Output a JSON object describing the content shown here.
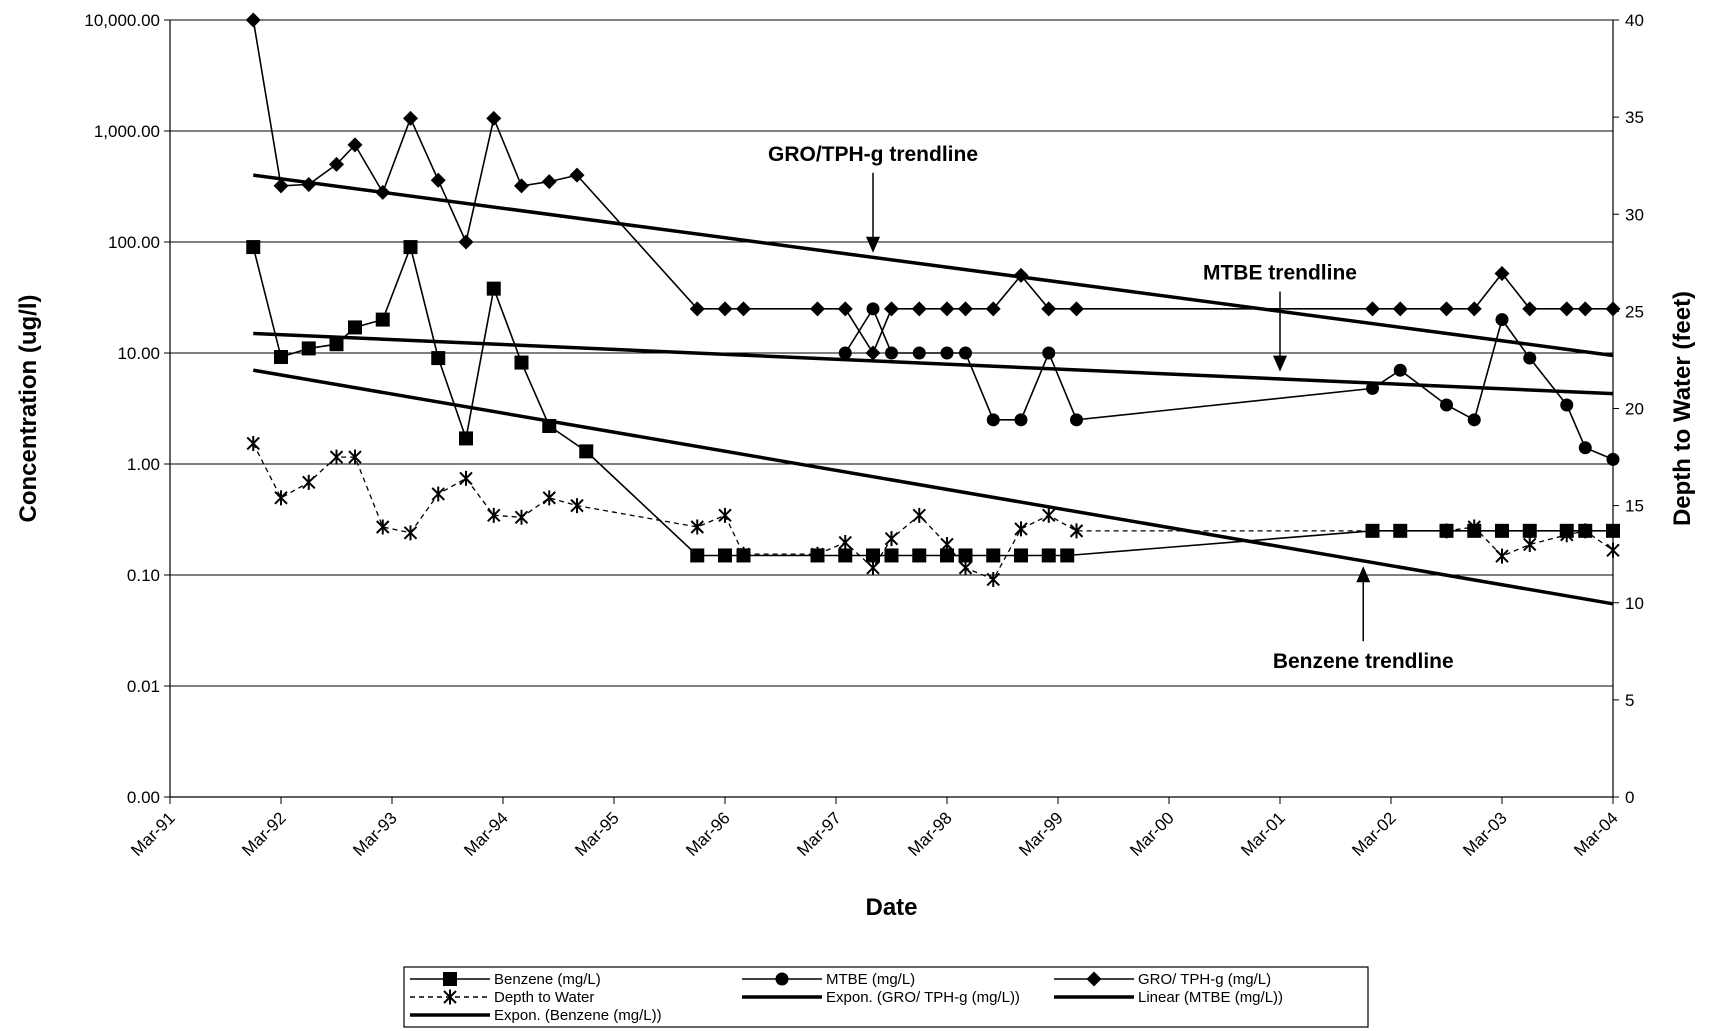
{
  "chart_data": {
    "type": "line",
    "title": "",
    "xlabel": "Date",
    "ylabel": "Concentration (ug/l)",
    "y2label": "Depth to Water (feet)",
    "y_scale": "log",
    "y_tick_labels": [
      "10,000.00",
      "1,000.00",
      "100.00",
      "10.00",
      "1.00",
      "0.10",
      "0.01",
      "0.00"
    ],
    "y_tick_values": [
      10000,
      1000,
      100,
      10,
      1,
      0.1,
      0.01,
      0.001
    ],
    "ylim": [
      0.001,
      10000
    ],
    "y2lim": [
      0,
      40
    ],
    "y2_ticks": [
      0,
      5,
      10,
      15,
      20,
      25,
      30,
      35,
      40
    ],
    "x_ticks": [
      "Mar-91",
      "Mar-92",
      "Mar-93",
      "Mar-94",
      "Mar-95",
      "Mar-96",
      "Mar-97",
      "Mar-98",
      "Mar-99",
      "Mar-00",
      "Mar-01",
      "Mar-02",
      "Mar-03",
      "Mar-04"
    ],
    "xlim": [
      "1991-03",
      "2004-03"
    ],
    "grid": "horizontal major gridlines",
    "legend_position": "bottom",
    "series": [
      {
        "name": "Benzene (mg/L)",
        "marker": "square",
        "axis": "left",
        "line": "solid",
        "points": [
          [
            "1991-12",
            90
          ],
          [
            "1992-03",
            9.2
          ],
          [
            "1992-06",
            11
          ],
          [
            "1992-09",
            12
          ],
          [
            "1992-11",
            17
          ],
          [
            "1993-02",
            20
          ],
          [
            "1993-05",
            90
          ],
          [
            "1993-08",
            9
          ],
          [
            "1993-11",
            1.7
          ],
          [
            "1994-02",
            38
          ],
          [
            "1994-05",
            8.2
          ],
          [
            "1994-08",
            2.2
          ],
          [
            "1994-12",
            1.3
          ],
          [
            "1995-12",
            0.15
          ],
          [
            "1996-03",
            0.15
          ],
          [
            "1996-05",
            0.15
          ],
          [
            "1997-01",
            0.15
          ],
          [
            "1997-04",
            0.15
          ],
          [
            "1997-07",
            0.15
          ],
          [
            "1997-09",
            0.15
          ],
          [
            "1997-12",
            0.15
          ],
          [
            "1998-03",
            0.15
          ],
          [
            "1998-05",
            0.15
          ],
          [
            "1998-08",
            0.15
          ],
          [
            "1998-11",
            0.15
          ],
          [
            "1999-02",
            0.15
          ],
          [
            "1999-04",
            0.15
          ],
          [
            "2002-01",
            0.25
          ],
          [
            "2002-04",
            0.25
          ],
          [
            "2002-09",
            0.25
          ],
          [
            "2002-12",
            0.25
          ],
          [
            "2003-03",
            0.25
          ],
          [
            "2003-06",
            0.25
          ],
          [
            "2003-10",
            0.25
          ],
          [
            "2003-12",
            0.25
          ],
          [
            "2004-03",
            0.25
          ]
        ]
      },
      {
        "name": "MTBE (mg/L)",
        "marker": "circle",
        "axis": "left",
        "line": "solid",
        "points": [
          [
            "1997-04",
            10
          ],
          [
            "1997-07",
            25
          ],
          [
            "1997-09",
            10
          ],
          [
            "1997-12",
            10
          ],
          [
            "1998-03",
            10
          ],
          [
            "1998-05",
            10
          ],
          [
            "1998-08",
            2.5
          ],
          [
            "1998-11",
            2.5
          ],
          [
            "1999-02",
            10
          ],
          [
            "1999-05",
            2.5
          ],
          [
            "2002-01",
            4.8
          ],
          [
            "2002-04",
            7
          ],
          [
            "2002-09",
            3.4
          ],
          [
            "2002-12",
            2.5
          ],
          [
            "2003-03",
            20
          ],
          [
            "2003-06",
            9
          ],
          [
            "2003-10",
            3.4
          ],
          [
            "2003-12",
            1.4
          ],
          [
            "2004-03",
            1.1
          ]
        ]
      },
      {
        "name": "GRO/ TPH-g (mg/L)",
        "marker": "diamond",
        "axis": "left",
        "line": "solid",
        "points": [
          [
            "1991-12",
            10000
          ],
          [
            "1992-03",
            320
          ],
          [
            "1992-06",
            330
          ],
          [
            "1992-09",
            500
          ],
          [
            "1992-11",
            750
          ],
          [
            "1993-02",
            280
          ],
          [
            "1993-05",
            1300
          ],
          [
            "1993-08",
            360
          ],
          [
            "1993-11",
            100
          ],
          [
            "1994-02",
            1300
          ],
          [
            "1994-05",
            320
          ],
          [
            "1994-08",
            350
          ],
          [
            "1994-11",
            400
          ],
          [
            "1995-12",
            25
          ],
          [
            "1996-03",
            25
          ],
          [
            "1996-05",
            25
          ],
          [
            "1997-01",
            25
          ],
          [
            "1997-04",
            25
          ],
          [
            "1997-07",
            10
          ],
          [
            "1997-09",
            25
          ],
          [
            "1997-12",
            25
          ],
          [
            "1998-03",
            25
          ],
          [
            "1998-05",
            25
          ],
          [
            "1998-08",
            25
          ],
          [
            "1998-11",
            50
          ],
          [
            "1999-02",
            25
          ],
          [
            "1999-05",
            25
          ],
          [
            "2002-01",
            25
          ],
          [
            "2002-04",
            25
          ],
          [
            "2002-09",
            25
          ],
          [
            "2002-12",
            25
          ],
          [
            "2003-03",
            52
          ],
          [
            "2003-06",
            25
          ],
          [
            "2003-10",
            25
          ],
          [
            "2003-12",
            25
          ],
          [
            "2004-03",
            25
          ]
        ]
      },
      {
        "name": "Depth to Water",
        "marker": "asterisk",
        "axis": "right",
        "line": "dashed",
        "points": [
          [
            "1991-12",
            18.2
          ],
          [
            "1992-03",
            15.4
          ],
          [
            "1992-06",
            16.2
          ],
          [
            "1992-09",
            17.5
          ],
          [
            "1992-11",
            17.5
          ],
          [
            "1993-02",
            13.9
          ],
          [
            "1993-05",
            13.6
          ],
          [
            "1993-08",
            15.6
          ],
          [
            "1993-11",
            16.4
          ],
          [
            "1994-02",
            14.5
          ],
          [
            "1994-05",
            14.4
          ],
          [
            "1994-08",
            15.4
          ],
          [
            "1994-11",
            15
          ],
          [
            "1995-12",
            13.9
          ],
          [
            "1996-03",
            14.5
          ],
          [
            "1996-05",
            12.5
          ],
          [
            "1997-01",
            12.5
          ],
          [
            "1997-04",
            13.1
          ],
          [
            "1997-07",
            11.8
          ],
          [
            "1997-09",
            13.3
          ],
          [
            "1997-12",
            14.5
          ],
          [
            "1998-03",
            13
          ],
          [
            "1998-05",
            11.8
          ],
          [
            "1998-08",
            11.2
          ],
          [
            "1998-11",
            13.8
          ],
          [
            "1999-02",
            14.5
          ],
          [
            "1999-05",
            13.7
          ],
          [
            "2002-09",
            13.7
          ],
          [
            "2002-12",
            13.9
          ],
          [
            "2003-03",
            12.4
          ],
          [
            "2003-06",
            13
          ],
          [
            "2003-10",
            13.5
          ],
          [
            "2003-12",
            13.7
          ],
          [
            "2004-03",
            12.7
          ]
        ]
      }
    ],
    "trendlines": [
      {
        "name": "Expon. (GRO/ TPH-g (mg/L))",
        "axis": "left",
        "from": [
          "1991-12",
          400
        ],
        "to": [
          "2004-03",
          9.5
        ]
      },
      {
        "name": "Linear (MTBE (mg/L))",
        "axis": "left",
        "from": [
          "1991-12",
          15
        ],
        "to": [
          "2004-03",
          4.3
        ]
      },
      {
        "name": "Expon. (Benzene (mg/L))",
        "axis": "left",
        "from": [
          "1991-12",
          7
        ],
        "to": [
          "2004-03",
          0.055
        ]
      }
    ],
    "annotations": [
      {
        "text": "GRO/TPH-g trendline",
        "target": [
          "1997-07",
          80
        ],
        "direction": "down"
      },
      {
        "text": "MTBE trendline",
        "target": [
          "2001-03",
          6.8
        ],
        "direction": "down"
      },
      {
        "text": "Benzene trendline",
        "target": [
          "2001-12",
          0.12
        ],
        "direction": "up"
      }
    ],
    "legend": [
      [
        "Benzene (mg/L)",
        "MTBE (mg/L)",
        "GRO/ TPH-g (mg/L)"
      ],
      [
        "Depth to Water",
        "Expon. (GRO/ TPH-g (mg/L))",
        "Linear (MTBE (mg/L))"
      ],
      [
        "Expon. (Benzene (mg/L))"
      ]
    ]
  }
}
